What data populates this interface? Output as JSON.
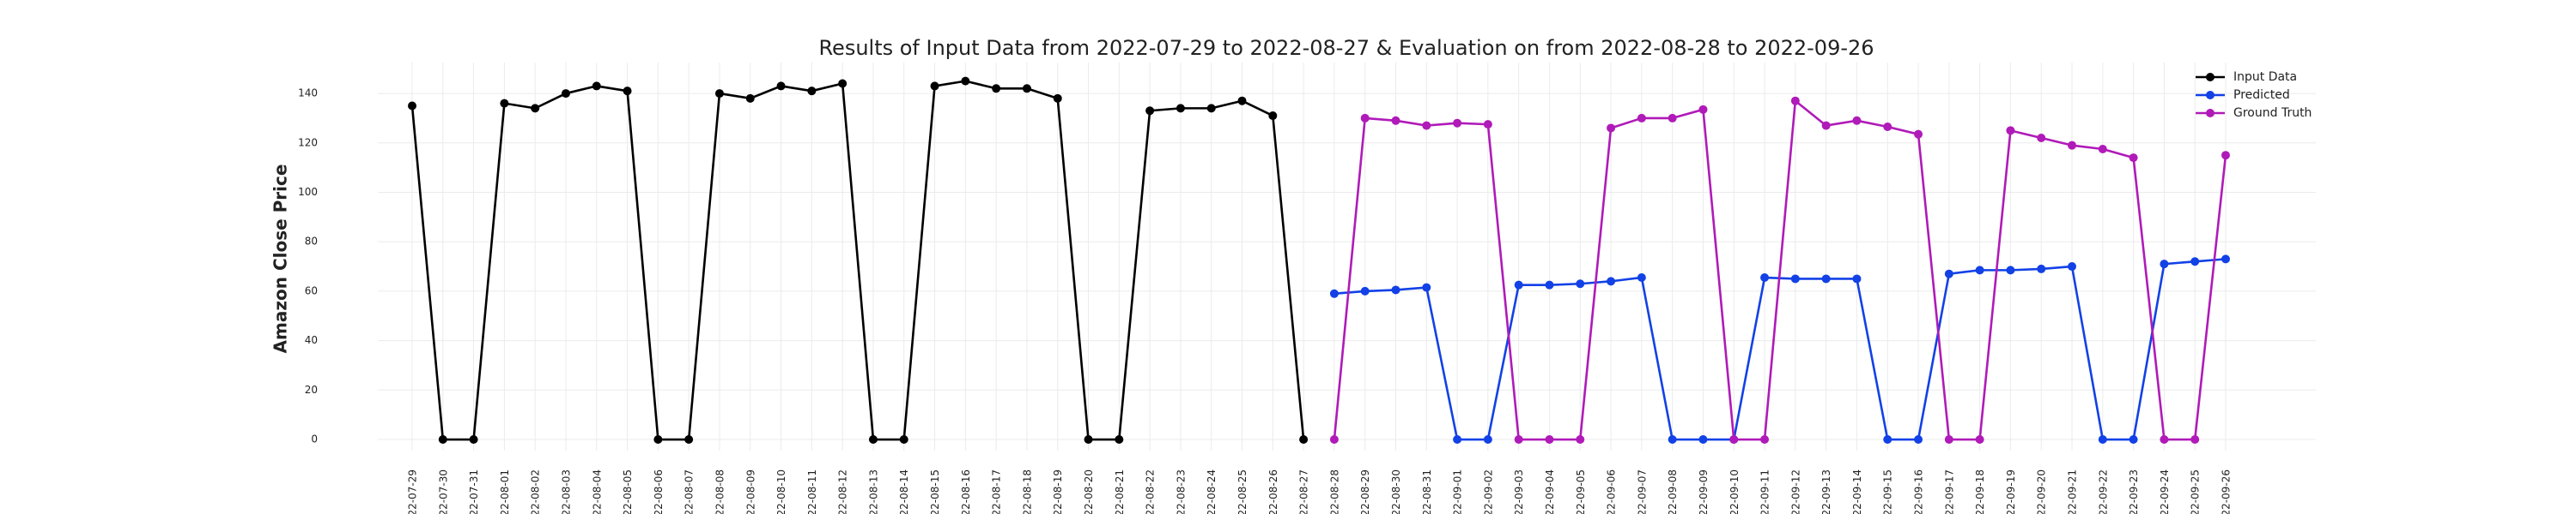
{
  "chart_data": {
    "type": "line",
    "title": "Results of Input Data from 2022-07-29 to 2022-08-27 & Evaluation on from 2022-08-28 to 2022-09-26",
    "ylabel": "Amazon Close Price",
    "categories": [
      "2022-07-29",
      "2022-07-30",
      "2022-07-31",
      "2022-08-01",
      "2022-08-02",
      "2022-08-03",
      "2022-08-04",
      "2022-08-05",
      "2022-08-06",
      "2022-08-07",
      "2022-08-08",
      "2022-08-09",
      "2022-08-10",
      "2022-08-11",
      "2022-08-12",
      "2022-08-13",
      "2022-08-14",
      "2022-08-15",
      "2022-08-16",
      "2022-08-17",
      "2022-08-18",
      "2022-08-19",
      "2022-08-20",
      "2022-08-21",
      "2022-08-22",
      "2022-08-23",
      "2022-08-24",
      "2022-08-25",
      "2022-08-26",
      "2022-08-27",
      "2022-08-28",
      "2022-08-29",
      "2022-08-30",
      "2022-08-31",
      "2022-09-01",
      "2022-09-02",
      "2022-09-03",
      "2022-09-04",
      "2022-09-05",
      "2022-09-06",
      "2022-09-07",
      "2022-09-08",
      "2022-09-09",
      "2022-09-10",
      "2022-09-11",
      "2022-09-12",
      "2022-09-13",
      "2022-09-14",
      "2022-09-15",
      "2022-09-16",
      "2022-09-17",
      "2022-09-18",
      "2022-09-19",
      "2022-09-20",
      "2022-09-21",
      "2022-09-22",
      "2022-09-23",
      "2022-09-24",
      "2022-09-25",
      "2022-09-26"
    ],
    "series": [
      {
        "name": "Input Data",
        "color": "#000000",
        "values": [
          135,
          0,
          0,
          136,
          134,
          140,
          143,
          141,
          0,
          0,
          140,
          138,
          143,
          141,
          144,
          0,
          0,
          143,
          145,
          142,
          142,
          138,
          0,
          0,
          133,
          134,
          134,
          137,
          131,
          0,
          null,
          null,
          null,
          null,
          null,
          null,
          null,
          null,
          null,
          null,
          null,
          null,
          null,
          null,
          null,
          null,
          null,
          null,
          null,
          null,
          null,
          null,
          null,
          null,
          null,
          null,
          null,
          null,
          null,
          null
        ]
      },
      {
        "name": "Predicted",
        "color": "#1241e6",
        "values": [
          null,
          null,
          null,
          null,
          null,
          null,
          null,
          null,
          null,
          null,
          null,
          null,
          null,
          null,
          null,
          null,
          null,
          null,
          null,
          null,
          null,
          null,
          null,
          null,
          null,
          null,
          null,
          null,
          null,
          null,
          59,
          60,
          60.5,
          61.5,
          0,
          0,
          62.5,
          62.5,
          63,
          64,
          65.5,
          0,
          0,
          0,
          65.5,
          65,
          65,
          65,
          0,
          0,
          67,
          68.5,
          68.5,
          69,
          70,
          0,
          0,
          71,
          72,
          73
        ]
      },
      {
        "name": "Ground Truth",
        "color": "#b01ab8",
        "values": [
          null,
          null,
          null,
          null,
          null,
          null,
          null,
          null,
          null,
          null,
          null,
          null,
          null,
          null,
          null,
          null,
          null,
          null,
          null,
          null,
          null,
          null,
          null,
          null,
          null,
          null,
          null,
          null,
          null,
          null,
          0,
          130,
          129,
          127,
          128,
          127.5,
          0,
          0,
          0,
          126,
          130,
          130,
          133.5,
          0,
          0,
          137,
          127,
          129,
          126.5,
          123.5,
          0,
          0,
          125,
          122,
          119,
          117.5,
          114,
          0,
          0,
          115
        ]
      }
    ],
    "ylim": [
      -4.5,
      152.5
    ],
    "yticks": [
      0,
      20,
      40,
      60,
      80,
      100,
      120,
      140
    ],
    "grid": true,
    "legend": "upper right"
  }
}
